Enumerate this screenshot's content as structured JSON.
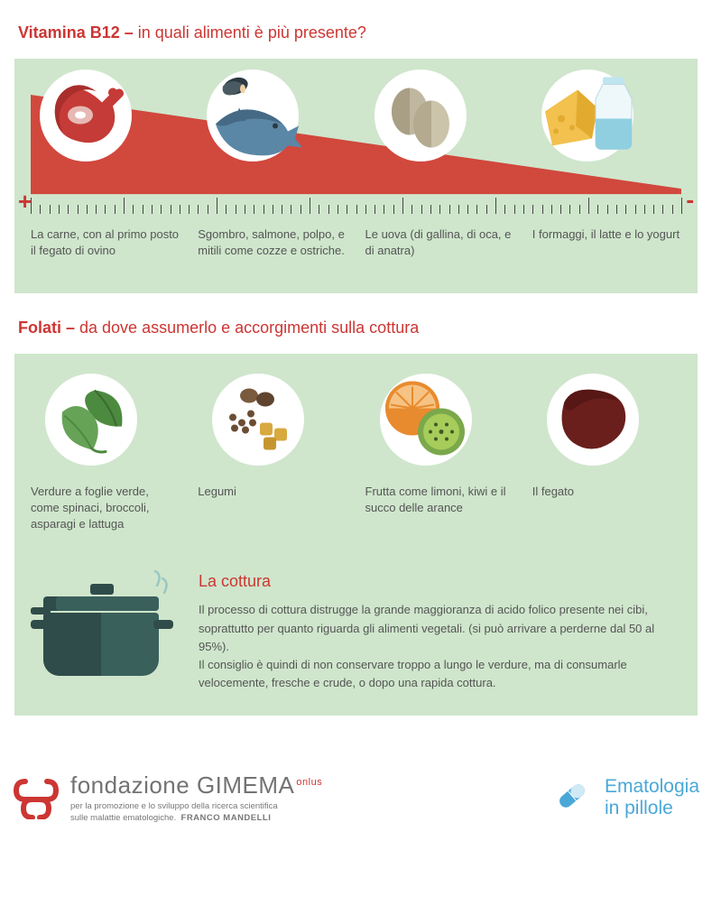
{
  "colors": {
    "red": "#cc3633",
    "panel_green": "#cfe6cc",
    "dark_text": "#555555",
    "wedge": "#d1483d",
    "tick": "#444444",
    "blue": "#4aa8d8"
  },
  "section_b12": {
    "title_bold": "Vitamina B12 –",
    "title_rest": " in quali alimenti è più presente?",
    "plus_label": "+",
    "minus_label": "-",
    "ruler": {
      "tick_count": 70,
      "tall_every": 10,
      "short_h": 10,
      "tall_h": 18
    },
    "items": [
      {
        "name": "meat-icon",
        "desc": "La carne, con al primo posto il fegato di ovino"
      },
      {
        "name": "fish-icon",
        "desc": "Sgombro, salmone, polpo, e mitili come cozze e ostriche."
      },
      {
        "name": "eggs-icon",
        "desc": "Le uova (di gallina, di oca, e di anatra)"
      },
      {
        "name": "dairy-icon",
        "desc": "I formaggi, il latte e lo yogurt"
      }
    ]
  },
  "section_folati": {
    "title_bold": "Folati –",
    "title_rest": " da dove assumerlo e accorgimenti sulla cottura",
    "items": [
      {
        "name": "leaves-icon",
        "desc": "Verdure a foglie verde, come spinaci, broccoli, asparagi e lattuga"
      },
      {
        "name": "legumes-icon",
        "desc": "Legumi"
      },
      {
        "name": "fruit-icon",
        "desc": "Frutta come limoni, kiwi e il succo delle arance"
      },
      {
        "name": "liver-icon",
        "desc": "Il fegato"
      }
    ],
    "cooking": {
      "title": "La cottura",
      "body": "Il processo di cottura distrugge la grande maggioranza di acido folico presente nei cibi, soprattutto per quanto riguarda gli alimenti vegetali. (si può arrivare a perderne dal 50 al 95%).\nIl consiglio è quindi di non conservare troppo a lungo le verdure, ma di consumarle velocemente, fresche e crude, o dopo una rapida cottura."
    }
  },
  "footer": {
    "org_light": "fondazione ",
    "org_bold": "GIMEMA",
    "onlus": "onlus",
    "sub1": "per la promozione e lo sviluppo della ricerca scientifica",
    "sub2": "sulle malattie ematologiche.",
    "sub_bold": "FRANCO MANDELLI",
    "pill_line1": "Ematologia",
    "pill_line2": "in pillole"
  }
}
